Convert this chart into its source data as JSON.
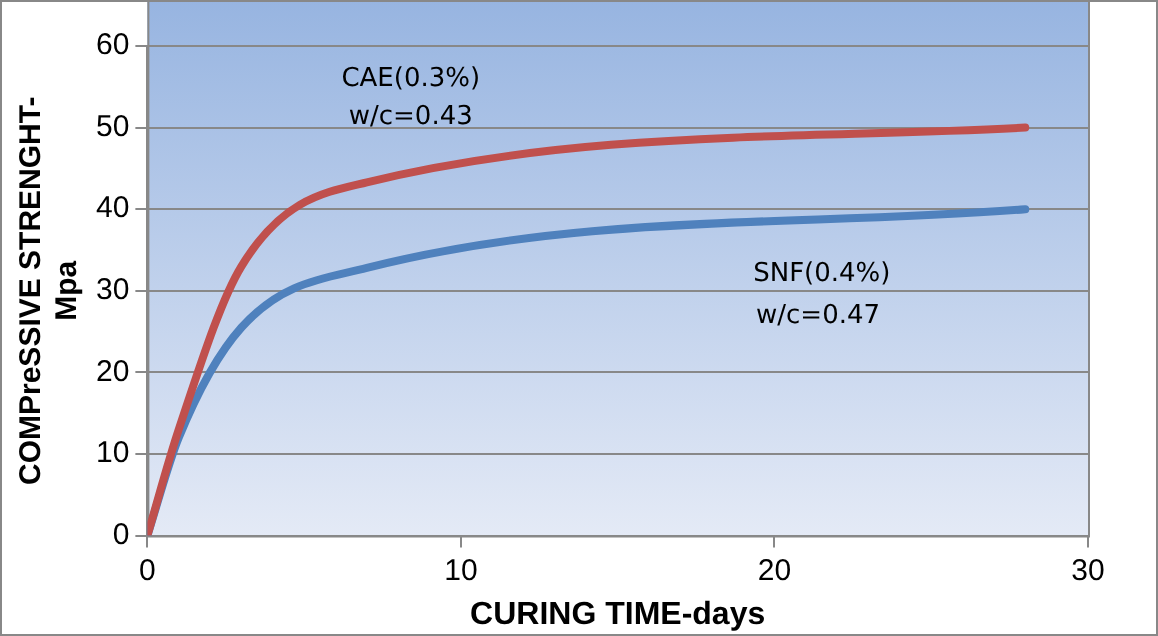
{
  "chart_data": {
    "type": "line",
    "xlabel": "CURING TIME-days",
    "ylabel": "COMPreSSIVE STRENGHT-\nMpa",
    "x": [
      0,
      1,
      3,
      7,
      28
    ],
    "series": [
      {
        "color": "#c0504d",
        "values": [
          0,
          13,
          33,
          43.3,
          50
        ]
      },
      {
        "color": "#4f81bd",
        "values": [
          0,
          12,
          25.5,
          32.8,
          40
        ]
      }
    ],
    "xlim": [
      0,
      30
    ],
    "xticks": [
      0,
      10,
      20,
      30
    ],
    "ylim": [
      0,
      60
    ],
    "yticks": [
      0,
      10,
      20,
      30,
      40,
      50,
      60
    ],
    "grid": "y",
    "legend": false,
    "marker": "none",
    "line_style": "solid",
    "annotations": [
      "CAE(0.3%)",
      "w/c=0.43",
      "SNF(0.4%)",
      "w/c=0.47"
    ]
  }
}
